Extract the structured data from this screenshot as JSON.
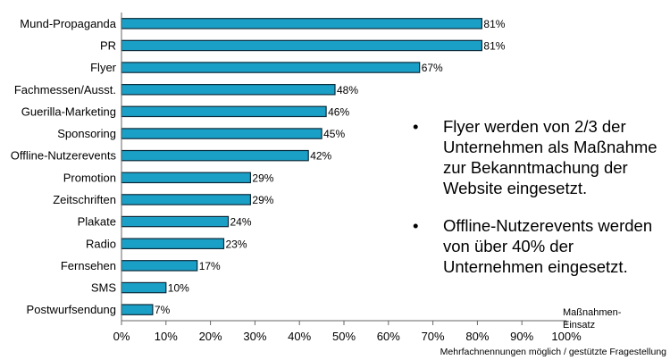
{
  "chart_data": {
    "type": "bar",
    "orientation": "horizontal",
    "categories": [
      "Mund-Propaganda",
      "PR",
      "Flyer",
      "Fachmessen/Ausst.",
      "Guerilla-Marketing",
      "Sponsoring",
      "Offline-Nutzerevents",
      "Promotion",
      "Zeitschriften",
      "Plakate",
      "Radio",
      "Fernsehen",
      "SMS",
      "Postwurfsendung"
    ],
    "values": [
      81,
      81,
      67,
      48,
      46,
      45,
      42,
      29,
      29,
      24,
      23,
      17,
      10,
      7
    ],
    "value_labels": [
      "81%",
      "81%",
      "67%",
      "48%",
      "46%",
      "45%",
      "42%",
      "29%",
      "29%",
      "24%",
      "23%",
      "17%",
      "10%",
      "7%"
    ],
    "xlim": [
      0,
      100
    ],
    "x_ticks": [
      0,
      10,
      20,
      30,
      40,
      50,
      60,
      70,
      80,
      90,
      100
    ],
    "x_tick_labels": [
      "0%",
      "10%",
      "20%",
      "30%",
      "40%",
      "50%",
      "60%",
      "70%",
      "80%",
      "90%",
      "100%"
    ],
    "xlabel": "Maßnahmen-Einsatz",
    "grid": false,
    "bar_color": "#1aa0c6",
    "bar_edge_color": "#0b2a3a"
  },
  "annotations": {
    "bullets": [
      "Flyer werden von 2/3 der Unternehmen als Maßnahme zur Bekanntmachung der Website eingesetzt.",
      "Offline-Nutzerevents werden von über 40% der Unternehmen eingesetzt."
    ],
    "bullet_symbol": "•",
    "axis_title_line1": "Maßnahmen-",
    "axis_title_line2": "Einsatz",
    "footnote": "Mehrfachnennungen möglich / gestützte Fragestellung"
  }
}
